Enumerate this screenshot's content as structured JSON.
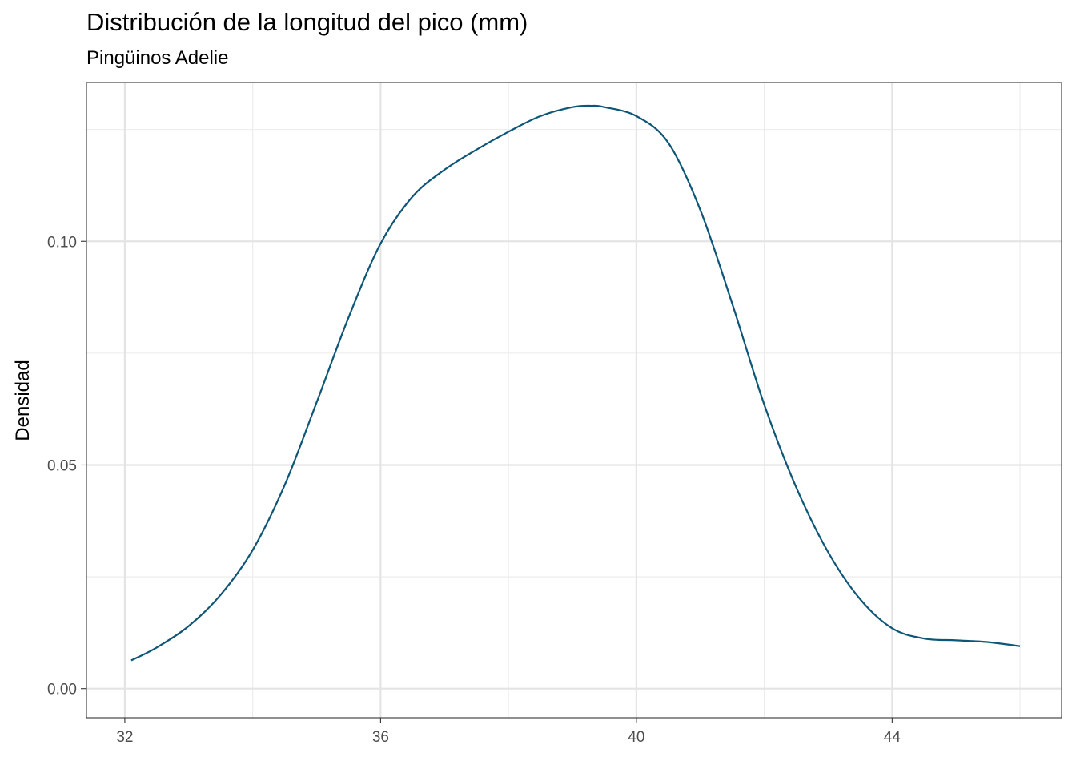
{
  "chart_data": {
    "type": "area",
    "title": "Distribución de la longitud del pico (mm)",
    "subtitle": "Pingüinos Adelie",
    "xlabel": "",
    "ylabel": "Densidad",
    "xlim": [
      31.4,
      46.65
    ],
    "ylim": [
      -0.0065,
      0.1355
    ],
    "x_ticks": [
      32,
      36,
      40,
      44
    ],
    "x_tick_labels": [
      "32",
      "36",
      "40",
      "44"
    ],
    "y_ticks": [
      0.0,
      0.05,
      0.1
    ],
    "y_tick_labels": [
      "0.00",
      "0.05",
      "0.10"
    ],
    "x_minor_ticks": [
      34,
      38,
      42,
      46
    ],
    "y_minor_ticks": [
      0.025,
      0.075,
      0.125
    ],
    "grid": true,
    "legend": "none",
    "line_color": "#0d5678",
    "series": [
      {
        "x": [
          32.1,
          32.5,
          33.0,
          33.5,
          34.0,
          34.5,
          35.0,
          35.5,
          36.0,
          36.5,
          37.0,
          37.5,
          38.0,
          38.5,
          39.0,
          39.3,
          39.5,
          40.0,
          40.5,
          41.0,
          41.5,
          42.0,
          42.5,
          43.0,
          43.5,
          44.0,
          44.5,
          45.0,
          45.5,
          46.0
        ],
        "y": [
          0.0063,
          0.0092,
          0.014,
          0.021,
          0.031,
          0.0455,
          0.064,
          0.083,
          0.0995,
          0.11,
          0.116,
          0.1205,
          0.1245,
          0.128,
          0.13,
          0.1303,
          0.13,
          0.128,
          0.122,
          0.107,
          0.086,
          0.0635,
          0.045,
          0.0305,
          0.02,
          0.0135,
          0.0112,
          0.0108,
          0.0104,
          0.0095
        ]
      }
    ]
  }
}
